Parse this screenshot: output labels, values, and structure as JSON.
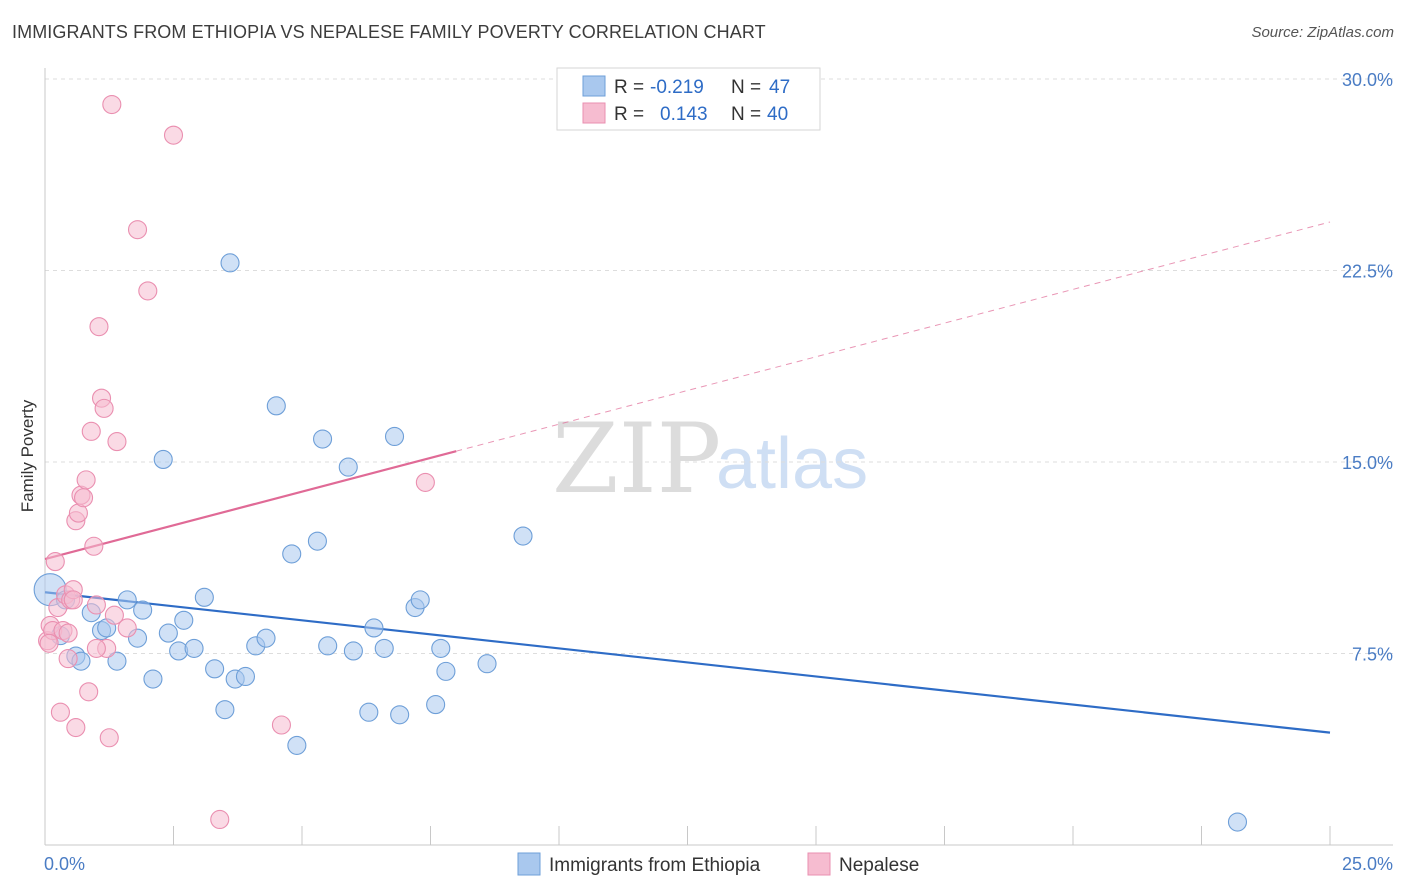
{
  "title": "IMMIGRANTS FROM ETHIOPIA VS NEPALESE FAMILY POVERTY CORRELATION CHART",
  "source": "Source: ZipAtlas.com",
  "watermark": {
    "zip": "ZIP",
    "atlas": "atlas"
  },
  "colors": {
    "blue_fill": "#a9c8ee",
    "blue_stroke": "#6e9fd8",
    "blue_line": "#2e6cc6",
    "pink_fill": "#f6bcd0",
    "pink_stroke": "#ea8fb0",
    "pink_line": "#e06a96",
    "grid": "#dddddd",
    "axis_text": "#4a7cc4"
  },
  "legend": {
    "rows": [
      {
        "r_label": "R =",
        "r_value": "-0.219",
        "n_label": "N =",
        "n_value": "47",
        "series": "blue"
      },
      {
        "r_label": "R =",
        "r_value": "0.143",
        "n_label": "N =",
        "n_value": "40",
        "series": "pink"
      }
    ]
  },
  "chart_data": {
    "type": "scatter",
    "title": "IMMIGRANTS FROM ETHIOPIA VS NEPALESE FAMILY POVERTY CORRELATION CHART",
    "xlabel": "",
    "ylabel": "Family Poverty",
    "xlim": [
      0,
      25
    ],
    "ylim": [
      0,
      30
    ],
    "x_tick_labels": [
      "0.0%",
      "25.0%"
    ],
    "y_ticks": [
      7.5,
      15.0,
      22.5,
      30.0
    ],
    "y_tick_labels": [
      "7.5%",
      "15.0%",
      "22.5%",
      "30.0%"
    ],
    "grid": true,
    "series": [
      {
        "name": "Immigrants from Ethiopia",
        "color": "blue",
        "trend": {
          "x0": 0,
          "y0": 9.9,
          "x1": 25,
          "y1": 4.4,
          "dashed_from": null
        },
        "points": [
          [
            0.1,
            10.0,
            "big"
          ],
          [
            0.3,
            8.2
          ],
          [
            0.4,
            9.6
          ],
          [
            0.6,
            7.4
          ],
          [
            0.7,
            7.2
          ],
          [
            0.9,
            9.1
          ],
          [
            1.1,
            8.4
          ],
          [
            1.2,
            8.5
          ],
          [
            1.4,
            7.2
          ],
          [
            1.6,
            9.6
          ],
          [
            1.8,
            8.1
          ],
          [
            1.9,
            9.2
          ],
          [
            2.1,
            6.5
          ],
          [
            2.3,
            15.1
          ],
          [
            2.4,
            8.3
          ],
          [
            2.6,
            7.6
          ],
          [
            2.7,
            8.8
          ],
          [
            2.9,
            7.7
          ],
          [
            3.1,
            9.7
          ],
          [
            3.3,
            6.9
          ],
          [
            3.5,
            5.3
          ],
          [
            3.6,
            22.8
          ],
          [
            3.7,
            6.5
          ],
          [
            3.9,
            6.6
          ],
          [
            4.1,
            7.8
          ],
          [
            4.3,
            8.1
          ],
          [
            4.5,
            17.2
          ],
          [
            4.8,
            11.4
          ],
          [
            4.9,
            3.9
          ],
          [
            5.3,
            11.9
          ],
          [
            5.4,
            15.9
          ],
          [
            5.5,
            7.8
          ],
          [
            5.9,
            14.8
          ],
          [
            6.0,
            7.6
          ],
          [
            6.3,
            5.2
          ],
          [
            6.4,
            8.5
          ],
          [
            6.6,
            7.7
          ],
          [
            6.8,
            16.0
          ],
          [
            6.9,
            5.1
          ],
          [
            7.2,
            9.3
          ],
          [
            7.3,
            9.6
          ],
          [
            7.6,
            5.5
          ],
          [
            7.7,
            7.7
          ],
          [
            7.8,
            6.8
          ],
          [
            8.6,
            7.1
          ],
          [
            9.3,
            12.1
          ],
          [
            23.2,
            0.9
          ]
        ]
      },
      {
        "name": "Nepalese",
        "color": "pink",
        "trend": {
          "x0": 0,
          "y0": 11.2,
          "x1": 25,
          "y1": 24.4,
          "dashed_from": 8.0
        },
        "points": [
          [
            0.05,
            8.0
          ],
          [
            0.1,
            8.6
          ],
          [
            0.15,
            8.4
          ],
          [
            0.2,
            11.1
          ],
          [
            0.25,
            9.3
          ],
          [
            0.3,
            5.2
          ],
          [
            0.35,
            8.4
          ],
          [
            0.4,
            9.8
          ],
          [
            0.45,
            7.3
          ],
          [
            0.5,
            9.6
          ],
          [
            0.55,
            10.0
          ],
          [
            0.6,
            4.6
          ],
          [
            0.6,
            12.7
          ],
          [
            0.65,
            13.0
          ],
          [
            0.7,
            13.7
          ],
          [
            0.75,
            13.6
          ],
          [
            0.8,
            14.3
          ],
          [
            0.85,
            6.0
          ],
          [
            0.9,
            16.2
          ],
          [
            0.95,
            11.7
          ],
          [
            1.0,
            9.4
          ],
          [
            1.05,
            20.3
          ],
          [
            1.1,
            17.5
          ],
          [
            1.15,
            17.1
          ],
          [
            1.2,
            7.7
          ],
          [
            1.25,
            4.2
          ],
          [
            1.3,
            29.0
          ],
          [
            1.35,
            9.0
          ],
          [
            1.4,
            15.8
          ],
          [
            1.6,
            8.5
          ],
          [
            1.8,
            24.1
          ],
          [
            2.0,
            21.7
          ],
          [
            2.5,
            27.8
          ],
          [
            3.4,
            1.0
          ],
          [
            4.6,
            4.7
          ],
          [
            7.4,
            14.2
          ],
          [
            0.08,
            7.9
          ],
          [
            0.45,
            8.3
          ],
          [
            0.55,
            9.6
          ],
          [
            1.0,
            7.7
          ]
        ]
      }
    ]
  },
  "bottom_legend": {
    "items": [
      {
        "label": "Immigrants from Ethiopia",
        "series": "blue"
      },
      {
        "label": "Nepalese",
        "series": "pink"
      }
    ]
  }
}
